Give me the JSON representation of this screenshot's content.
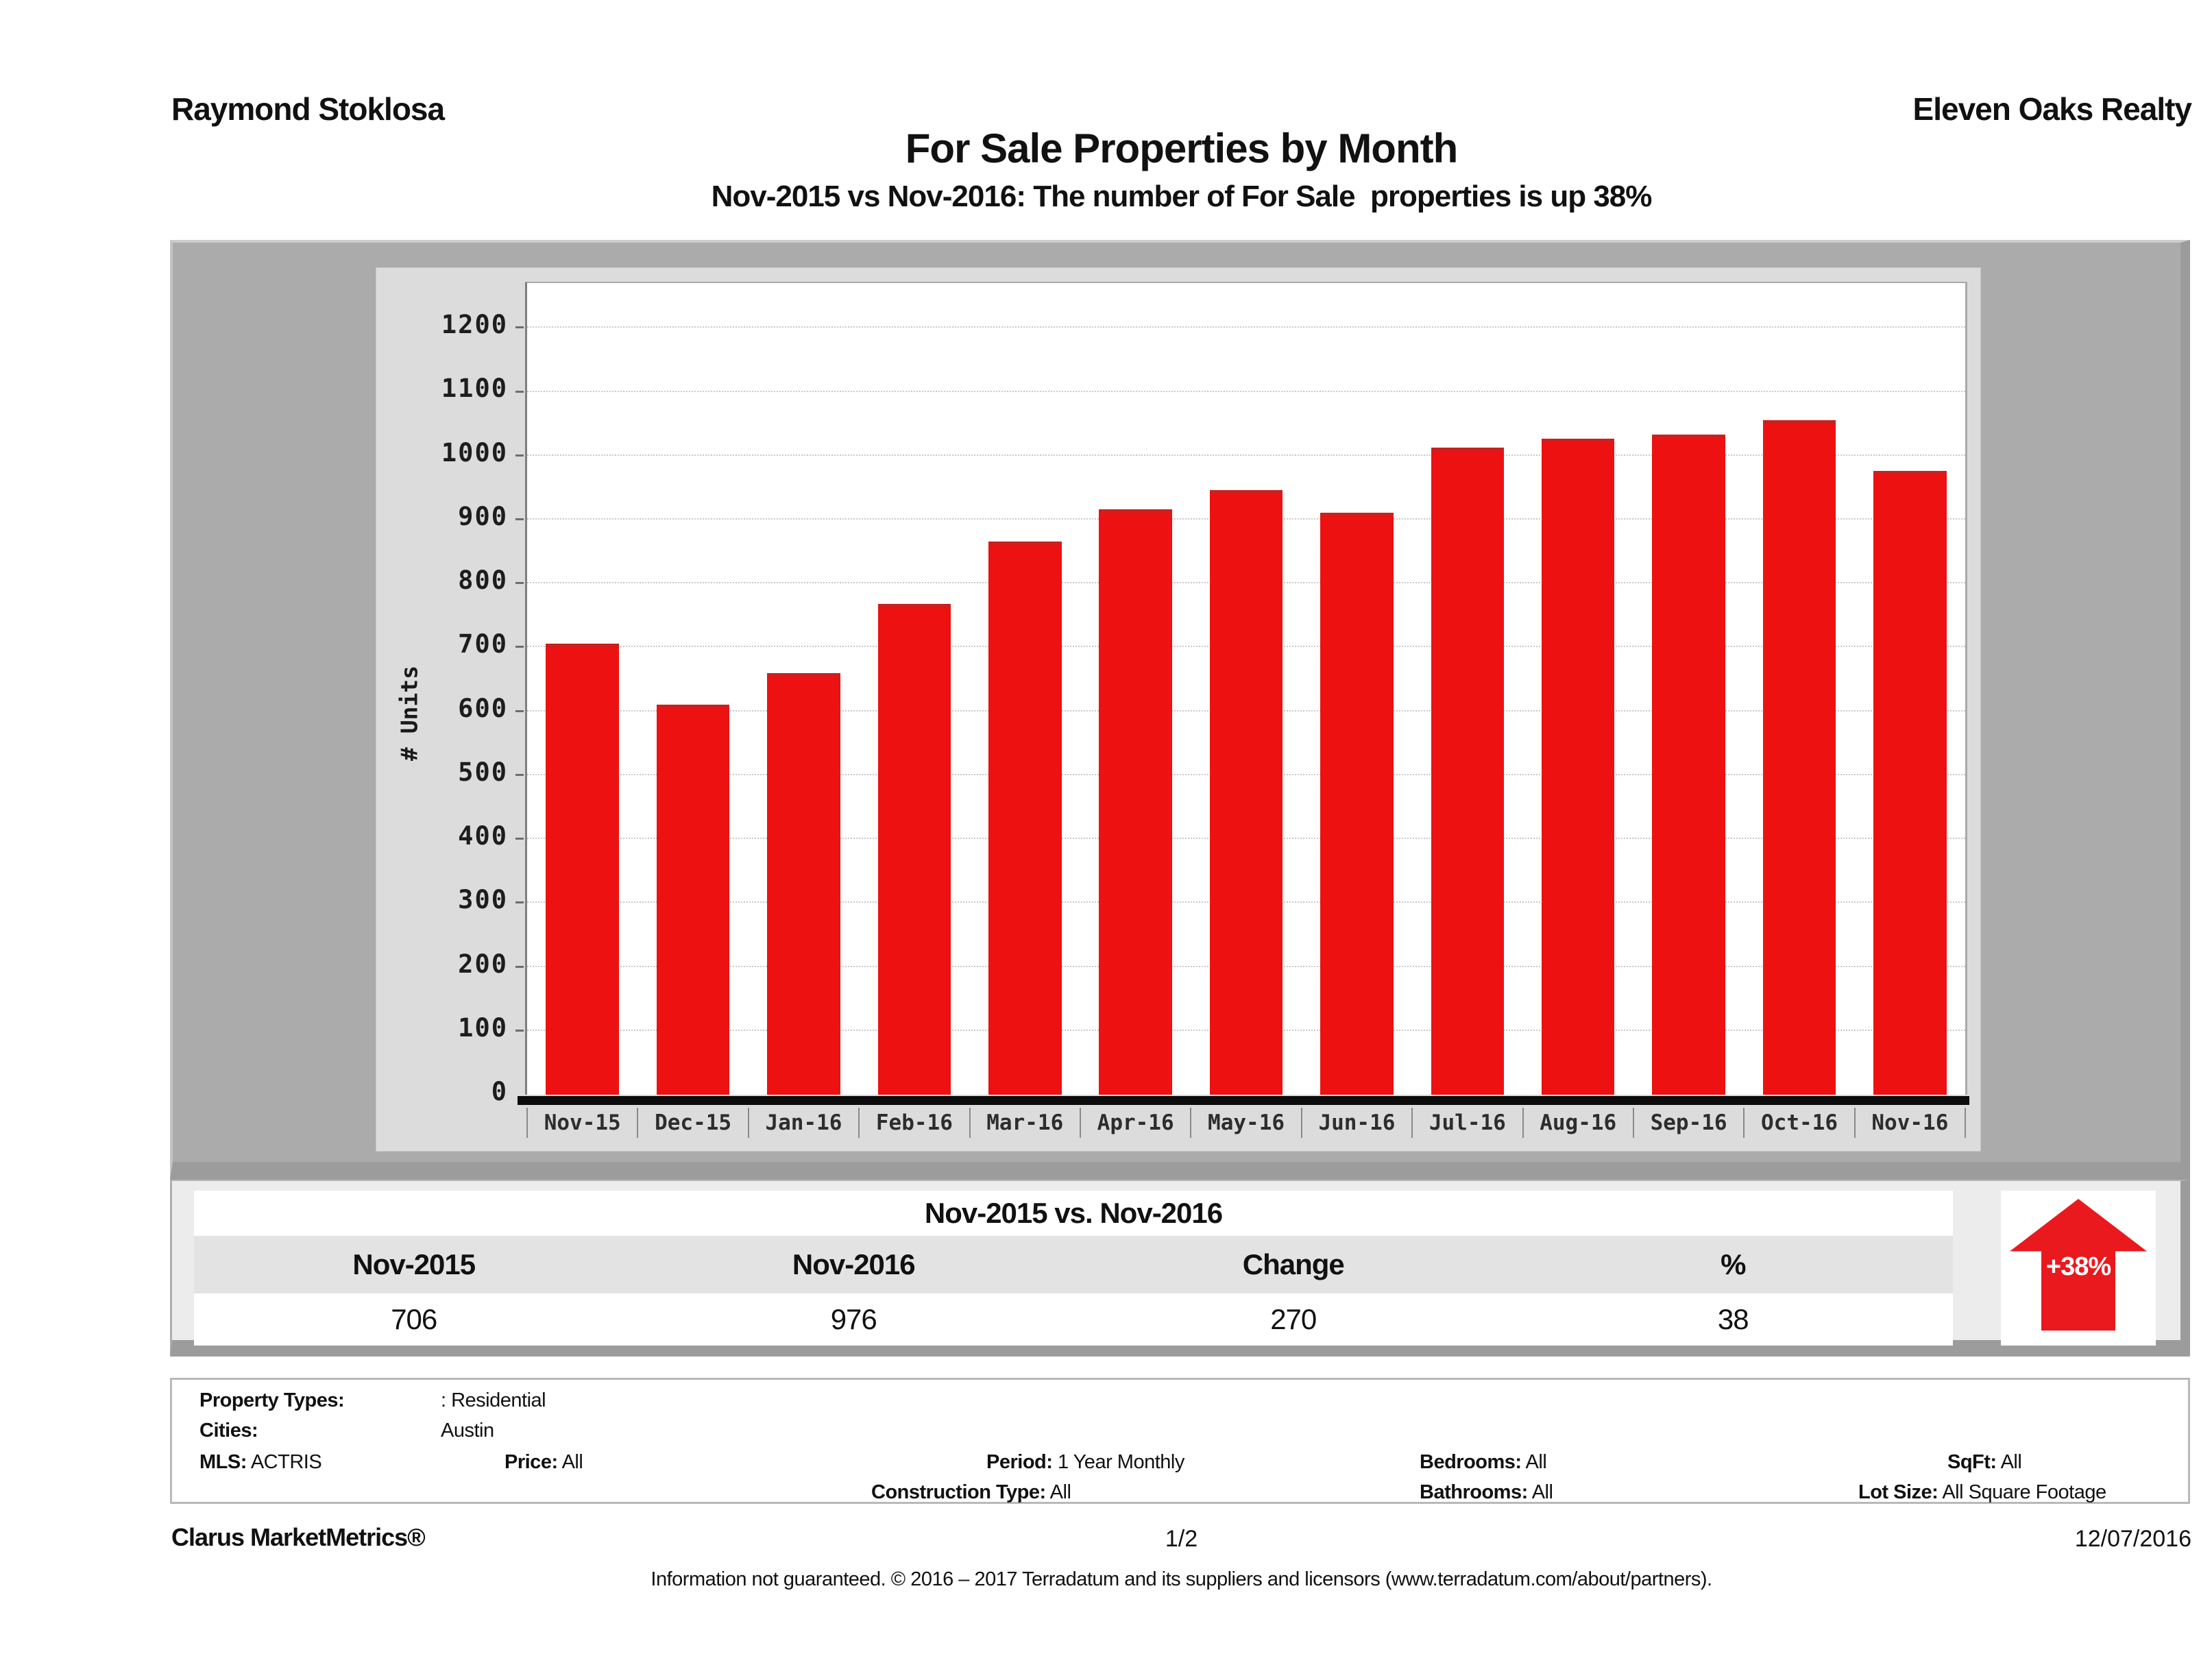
{
  "header": {
    "agent": "Raymond Stoklosa",
    "company": "Eleven Oaks Realty",
    "title": "For Sale Properties by Month",
    "subtitle": "Nov-2015 vs Nov-2016: The number of For Sale  properties is up 38%"
  },
  "chart_data": {
    "type": "bar",
    "title": "For Sale Properties by Month",
    "categories": [
      "Nov-15",
      "Dec-15",
      "Jan-16",
      "Feb-16",
      "Mar-16",
      "Apr-16",
      "May-16",
      "Jun-16",
      "Jul-16",
      "Aug-16",
      "Sep-16",
      "Oct-16",
      "Nov-16"
    ],
    "values": [
      706,
      610,
      660,
      768,
      866,
      916,
      946,
      911,
      1013,
      1026,
      1033,
      1055,
      976
    ],
    "xlabel": "",
    "ylabel": "# Units",
    "ylim": [
      0,
      1270
    ],
    "ytick_step": 100,
    "ytick_max": 1200,
    "grid": true,
    "legend_position": "none",
    "bar_color": "#ee1111"
  },
  "comparison": {
    "title": "Nov-2015 vs. Nov-2016",
    "columns": [
      "Nov-2015",
      "Nov-2016",
      "Change",
      "%"
    ],
    "values": [
      "706",
      "976",
      "270",
      "38"
    ],
    "badge": "+38%",
    "badge_color": "#e9191e"
  },
  "filters": {
    "property_types_label": "Property Types:",
    "property_types_value": ": Residential",
    "cities_label": "Cities:",
    "cities_value": "Austin",
    "mls_label": "MLS:",
    "mls_value": "ACTRIS",
    "price_label": "Price:",
    "price_value": "All",
    "period_label": "Period:",
    "period_value": "1 Year Monthly",
    "bedrooms_label": "Bedrooms:",
    "bedrooms_value": "All",
    "sqft_label": "SqFt:",
    "sqft_value": "All",
    "construction_label": "Construction Type:",
    "construction_value": "All",
    "bathrooms_label": "Bathrooms:",
    "bathrooms_value": "All",
    "lotsize_label": "Lot Size:",
    "lotsize_value": "All Square Footage"
  },
  "footer": {
    "brand": "Clarus MarketMetrics®",
    "page": "1/2",
    "date": "12/07/2016",
    "disclaimer": "Information not guaranteed. © 2016 – 2017 Terradatum and its suppliers and licensors (www.terradatum.com/about/partners)."
  }
}
